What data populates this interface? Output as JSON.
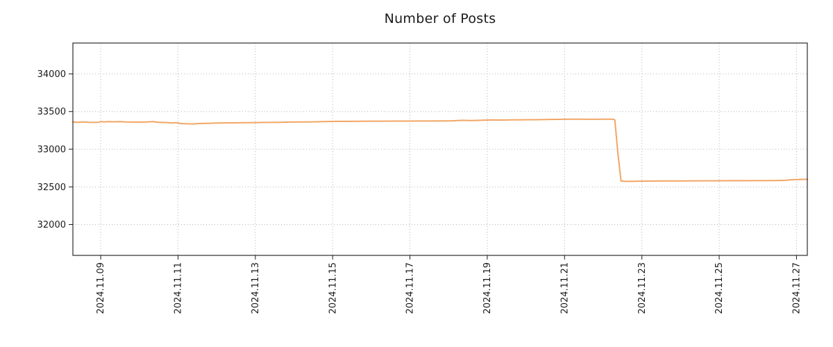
{
  "chart_data": {
    "type": "line",
    "title": "Number of Posts",
    "xlabel": "",
    "ylabel": "",
    "x_unit": "date (November 2024, day of month)",
    "xlim": [
      8.28,
      27.28
    ],
    "ylim": [
      31590,
      34410
    ],
    "grid": true,
    "legend": false,
    "background": "#ffffff",
    "line_color": "#f2a564",
    "yticks": [
      32000,
      32500,
      33000,
      33500,
      34000
    ],
    "xticks": [
      {
        "day": 9,
        "label": "2024.11.09"
      },
      {
        "day": 11,
        "label": "2024.11.11"
      },
      {
        "day": 13,
        "label": "2024.11.13"
      },
      {
        "day": 15,
        "label": "2024.11.15"
      },
      {
        "day": 17,
        "label": "2024.11.17"
      },
      {
        "day": 19,
        "label": "2024.11.19"
      },
      {
        "day": 21,
        "label": "2024.11.21"
      },
      {
        "day": 23,
        "label": "2024.11.23"
      },
      {
        "day": 25,
        "label": "2024.11.25"
      },
      {
        "day": 27,
        "label": "2024.11.27"
      }
    ],
    "series": [
      {
        "name": "Number of Posts",
        "points": [
          [
            8.28,
            33362
          ],
          [
            8.4,
            33358
          ],
          [
            8.55,
            33361
          ],
          [
            8.7,
            33357
          ],
          [
            8.85,
            33356
          ],
          [
            8.95,
            33357
          ],
          [
            9.0,
            33369
          ],
          [
            9.08,
            33362
          ],
          [
            9.2,
            33367
          ],
          [
            9.35,
            33364
          ],
          [
            9.5,
            33366
          ],
          [
            9.65,
            33361
          ],
          [
            9.8,
            33360
          ],
          [
            10.0,
            33359
          ],
          [
            10.2,
            33362
          ],
          [
            10.35,
            33366
          ],
          [
            10.5,
            33357
          ],
          [
            10.7,
            33355
          ],
          [
            10.85,
            33348
          ],
          [
            10.95,
            33352
          ],
          [
            11.1,
            33340
          ],
          [
            11.25,
            33337
          ],
          [
            11.4,
            33336
          ],
          [
            11.55,
            33341
          ],
          [
            11.7,
            33343
          ],
          [
            11.85,
            33345
          ],
          [
            12.0,
            33347
          ],
          [
            12.2,
            33349
          ],
          [
            12.4,
            33350
          ],
          [
            12.6,
            33351
          ],
          [
            12.8,
            33352
          ],
          [
            13.0,
            33354
          ],
          [
            13.3,
            33356
          ],
          [
            13.6,
            33358
          ],
          [
            13.9,
            33360
          ],
          [
            14.2,
            33361
          ],
          [
            14.5,
            33363
          ],
          [
            14.8,
            33368
          ],
          [
            15.1,
            33370
          ],
          [
            15.4,
            33370
          ],
          [
            15.7,
            33371
          ],
          [
            16.0,
            33372
          ],
          [
            16.3,
            33372
          ],
          [
            16.6,
            33373
          ],
          [
            16.9,
            33373
          ],
          [
            17.2,
            33374
          ],
          [
            17.5,
            33374
          ],
          [
            17.8,
            33375
          ],
          [
            18.1,
            33377
          ],
          [
            18.35,
            33383
          ],
          [
            18.6,
            33381
          ],
          [
            18.85,
            33384
          ],
          [
            19.1,
            33390
          ],
          [
            19.35,
            33387
          ],
          [
            19.6,
            33389
          ],
          [
            19.9,
            33391
          ],
          [
            20.2,
            33392
          ],
          [
            20.5,
            33394
          ],
          [
            20.8,
            33396
          ],
          [
            21.1,
            33398
          ],
          [
            21.4,
            33398
          ],
          [
            21.7,
            33397
          ],
          [
            22.0,
            33398
          ],
          [
            22.25,
            33398
          ],
          [
            22.3,
            33390
          ],
          [
            22.38,
            32950
          ],
          [
            22.46,
            32578
          ],
          [
            22.6,
            32572
          ],
          [
            22.8,
            32574
          ],
          [
            23.0,
            32576
          ],
          [
            23.25,
            32577
          ],
          [
            23.5,
            32578
          ],
          [
            23.75,
            32578
          ],
          [
            24.0,
            32579
          ],
          [
            24.25,
            32580
          ],
          [
            24.5,
            32580
          ],
          [
            24.75,
            32581
          ],
          [
            25.0,
            32581
          ],
          [
            25.25,
            32582
          ],
          [
            25.5,
            32582
          ],
          [
            25.75,
            32582
          ],
          [
            26.0,
            32583
          ],
          [
            26.25,
            32583
          ],
          [
            26.5,
            32584
          ],
          [
            26.7,
            32586
          ],
          [
            26.85,
            32594
          ],
          [
            27.0,
            32597
          ],
          [
            27.15,
            32599
          ],
          [
            27.28,
            32600
          ]
        ]
      }
    ]
  }
}
